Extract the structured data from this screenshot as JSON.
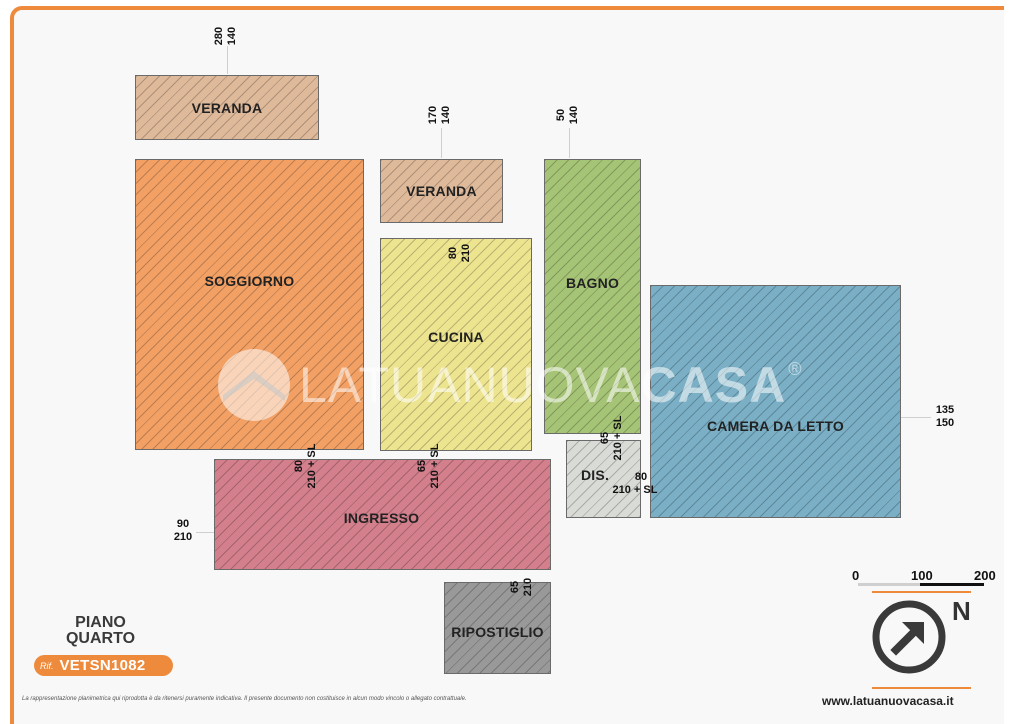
{
  "rooms": {
    "veranda_top": "VERANDA",
    "soggiorno": "SOGGIORNO",
    "veranda_mid": "VERANDA",
    "cucina": "CUCINA",
    "bagno": "BAGNO",
    "camera": "CAMERA DA LETTO",
    "dis": "DIS.",
    "ingresso": "INGRESSO",
    "ripostiglio": "RIPOSTIGLIO"
  },
  "dimensions": {
    "veranda_top": [
      "280",
      "140"
    ],
    "veranda_mid": [
      "170",
      "140"
    ],
    "bagno": [
      "50",
      "140"
    ],
    "cucina": [
      "80",
      "210"
    ],
    "camera": [
      "135",
      "150"
    ],
    "soggiorno_door": [
      "80",
      "210 + SL"
    ],
    "cucina_door": [
      "65",
      "210 + SL"
    ],
    "bagno_door": [
      "65",
      "210 + SL"
    ],
    "dis_door": [
      "80",
      "210 + SL"
    ],
    "ingresso": [
      "90",
      "210"
    ],
    "ripostiglio": [
      "65",
      "210"
    ]
  },
  "colors": {
    "veranda": "#deb99a",
    "soggiorno": "#f2a064",
    "cucina": "#ede48f",
    "bagno": "#a6c476",
    "camera": "#7aafc6",
    "dis": "#d9dbd6",
    "ingresso": "#d37f8c",
    "ripostiglio": "#999999",
    "accent": "#ee8a3c"
  },
  "watermark": {
    "light": "LATUANUOVA",
    "bold": "CASA",
    "mark": "®"
  },
  "floor": {
    "line1": "PIANO",
    "line2": "QUARTO"
  },
  "reference": {
    "prefix": "Rif.",
    "code": "VETSN1082"
  },
  "scale": {
    "labels": [
      "0",
      "100",
      "200"
    ]
  },
  "compass": {
    "north": "N"
  },
  "disclaimer": "La rappresentazione planimetrica qui riprodotta è da ritenersi puramente indicativa. Il presente documento non costituisce in alcun modo vincolo o allegato contrattuale.",
  "website": "www.latuanuovacasa.it"
}
